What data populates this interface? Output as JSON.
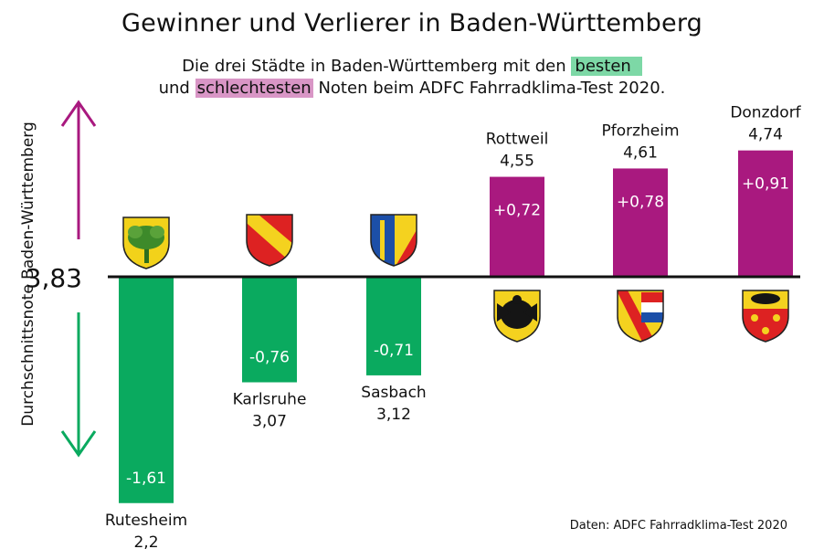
{
  "title": "Gewinner und Verlierer in Baden-Württemberg",
  "subtitle": {
    "line1_prefix": "Die drei Städte in Baden-Württemberg mit den",
    "line1_highlight": "besten",
    "line2_prefix": "und",
    "line2_highlight": "schlechtesten",
    "line2_suffix": "Noten beim ADFC Fahrradklima-Test 2020."
  },
  "source": "Daten: ADFC Fahrradklima-Test 2020",
  "colors": {
    "positive": "#a9197f",
    "negative": "#0aaa5f",
    "baseline": "#111111",
    "best_highlight": "#7dd8a6",
    "worst_highlight": "#d996c6"
  },
  "chart_data": {
    "type": "bar",
    "title": "Gewinner und Verlierer in Baden-Württemberg",
    "ylabel": "Durchschnittsnote Baden-Württemberg",
    "baseline_value": 3.83,
    "baseline_label": "3,83",
    "categories": [
      "Rutesheim",
      "Karlsruhe",
      "Sasbach",
      "Rottweil",
      "Pforzheim",
      "Donzdorf"
    ],
    "values": [
      2.2,
      3.07,
      3.12,
      4.55,
      4.61,
      4.74
    ],
    "value_labels": [
      "2,2",
      "3,07",
      "3,12",
      "4,55",
      "4,61",
      "4,74"
    ],
    "differences": [
      -1.61,
      -0.76,
      -0.71,
      0.72,
      0.78,
      0.91
    ],
    "difference_labels": [
      "-1,61",
      "-0,76",
      "-0,71",
      "+0,72",
      "+0,78",
      "+0,91"
    ],
    "crest_icons": [
      "rutesheim-crest-icon",
      "karlsruhe-crest-icon",
      "sasbach-crest-icon",
      "rottweil-crest-icon",
      "pforzheim-crest-icon",
      "donzdorf-crest-icon"
    ]
  }
}
